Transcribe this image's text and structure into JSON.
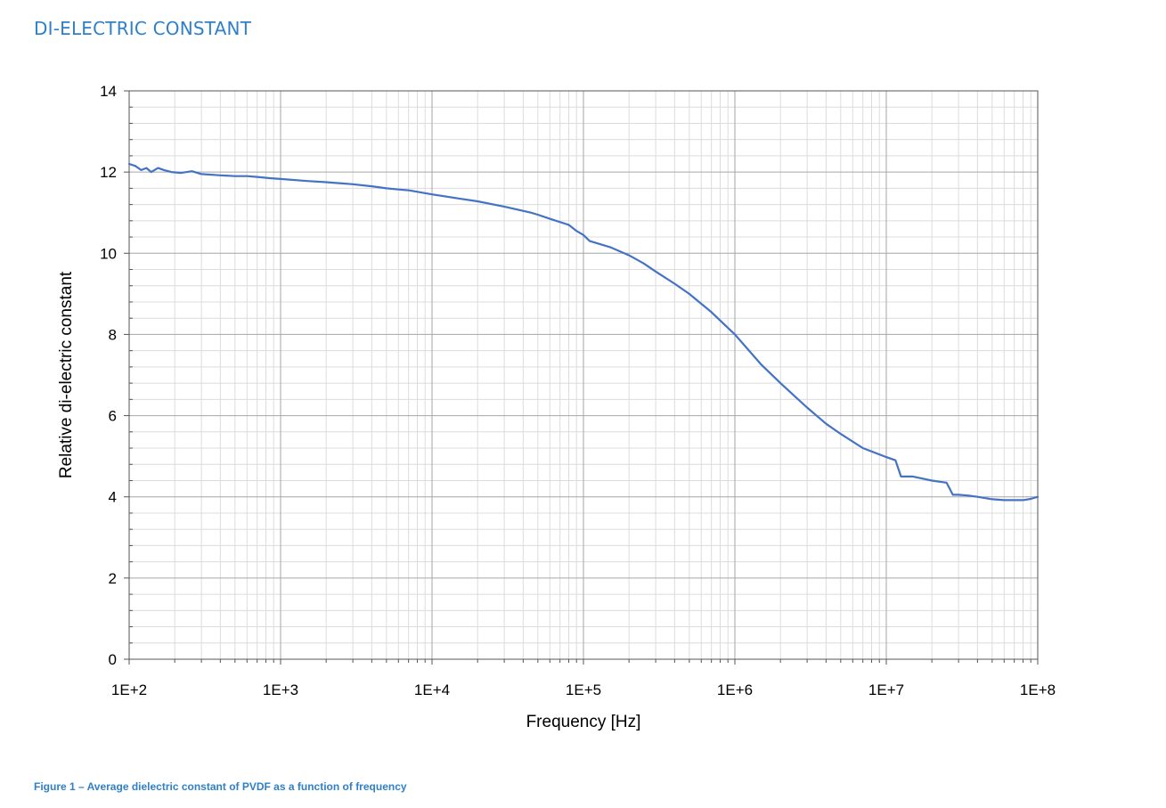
{
  "heading": "DI-ELECTRIC CONSTANT",
  "caption": "Figure 1 – Average dielectric constant of PVDF as a function of frequency",
  "chart_data": {
    "type": "line",
    "title": "",
    "xlabel": "Frequency [Hz]",
    "ylabel": "Relative di-electric constant",
    "x_scale": "log",
    "xlim": [
      100,
      100000000
    ],
    "ylim": [
      0,
      14
    ],
    "x_ticks": [
      "1E+2",
      "1E+3",
      "1E+4",
      "1E+5",
      "1E+6",
      "1E+7",
      "1E+8"
    ],
    "y_ticks": [
      "0",
      "2",
      "4",
      "6",
      "8",
      "10",
      "12",
      "14"
    ],
    "grid": "major and minor",
    "legend": "none",
    "series": [
      {
        "color": "#4472C4",
        "x": [
          100,
          110,
          120,
          130,
          140,
          155,
          170,
          190,
          220,
          260,
          300,
          400,
          500,
          600,
          700,
          850,
          1000,
          1500,
          2000,
          3000,
          4000,
          5000,
          6000,
          7000,
          10000,
          15000,
          20000,
          30000,
          45000,
          50000,
          60000,
          80000,
          90000,
          100000,
          110000,
          150000,
          200000,
          250000,
          300000,
          400000,
          500000,
          700000,
          1000000,
          1500000,
          2000000,
          3000000,
          4000000,
          5000000,
          7000000,
          10000000,
          11500000,
          12500000,
          13500000,
          15000000,
          20000000,
          25000000,
          27500000,
          30000000,
          35000000,
          40000000,
          50000000,
          60000000,
          70000000,
          80000000,
          90000000,
          100000000
        ],
        "y": [
          12.2,
          12.15,
          12.05,
          12.1,
          12.0,
          12.1,
          12.05,
          12.0,
          11.98,
          12.02,
          11.95,
          11.92,
          11.9,
          11.9,
          11.88,
          11.85,
          11.83,
          11.78,
          11.75,
          11.7,
          11.65,
          11.6,
          11.57,
          11.55,
          11.45,
          11.35,
          11.28,
          11.15,
          11.0,
          10.95,
          10.85,
          10.7,
          10.55,
          10.45,
          10.3,
          10.15,
          9.95,
          9.75,
          9.55,
          9.25,
          9.0,
          8.55,
          8.0,
          7.25,
          6.8,
          6.2,
          5.8,
          5.55,
          5.2,
          4.98,
          4.9,
          4.5,
          4.5,
          4.5,
          4.4,
          4.35,
          4.05,
          4.05,
          4.03,
          4.0,
          3.94,
          3.92,
          3.92,
          3.92,
          3.95,
          4.0
        ]
      }
    ]
  }
}
